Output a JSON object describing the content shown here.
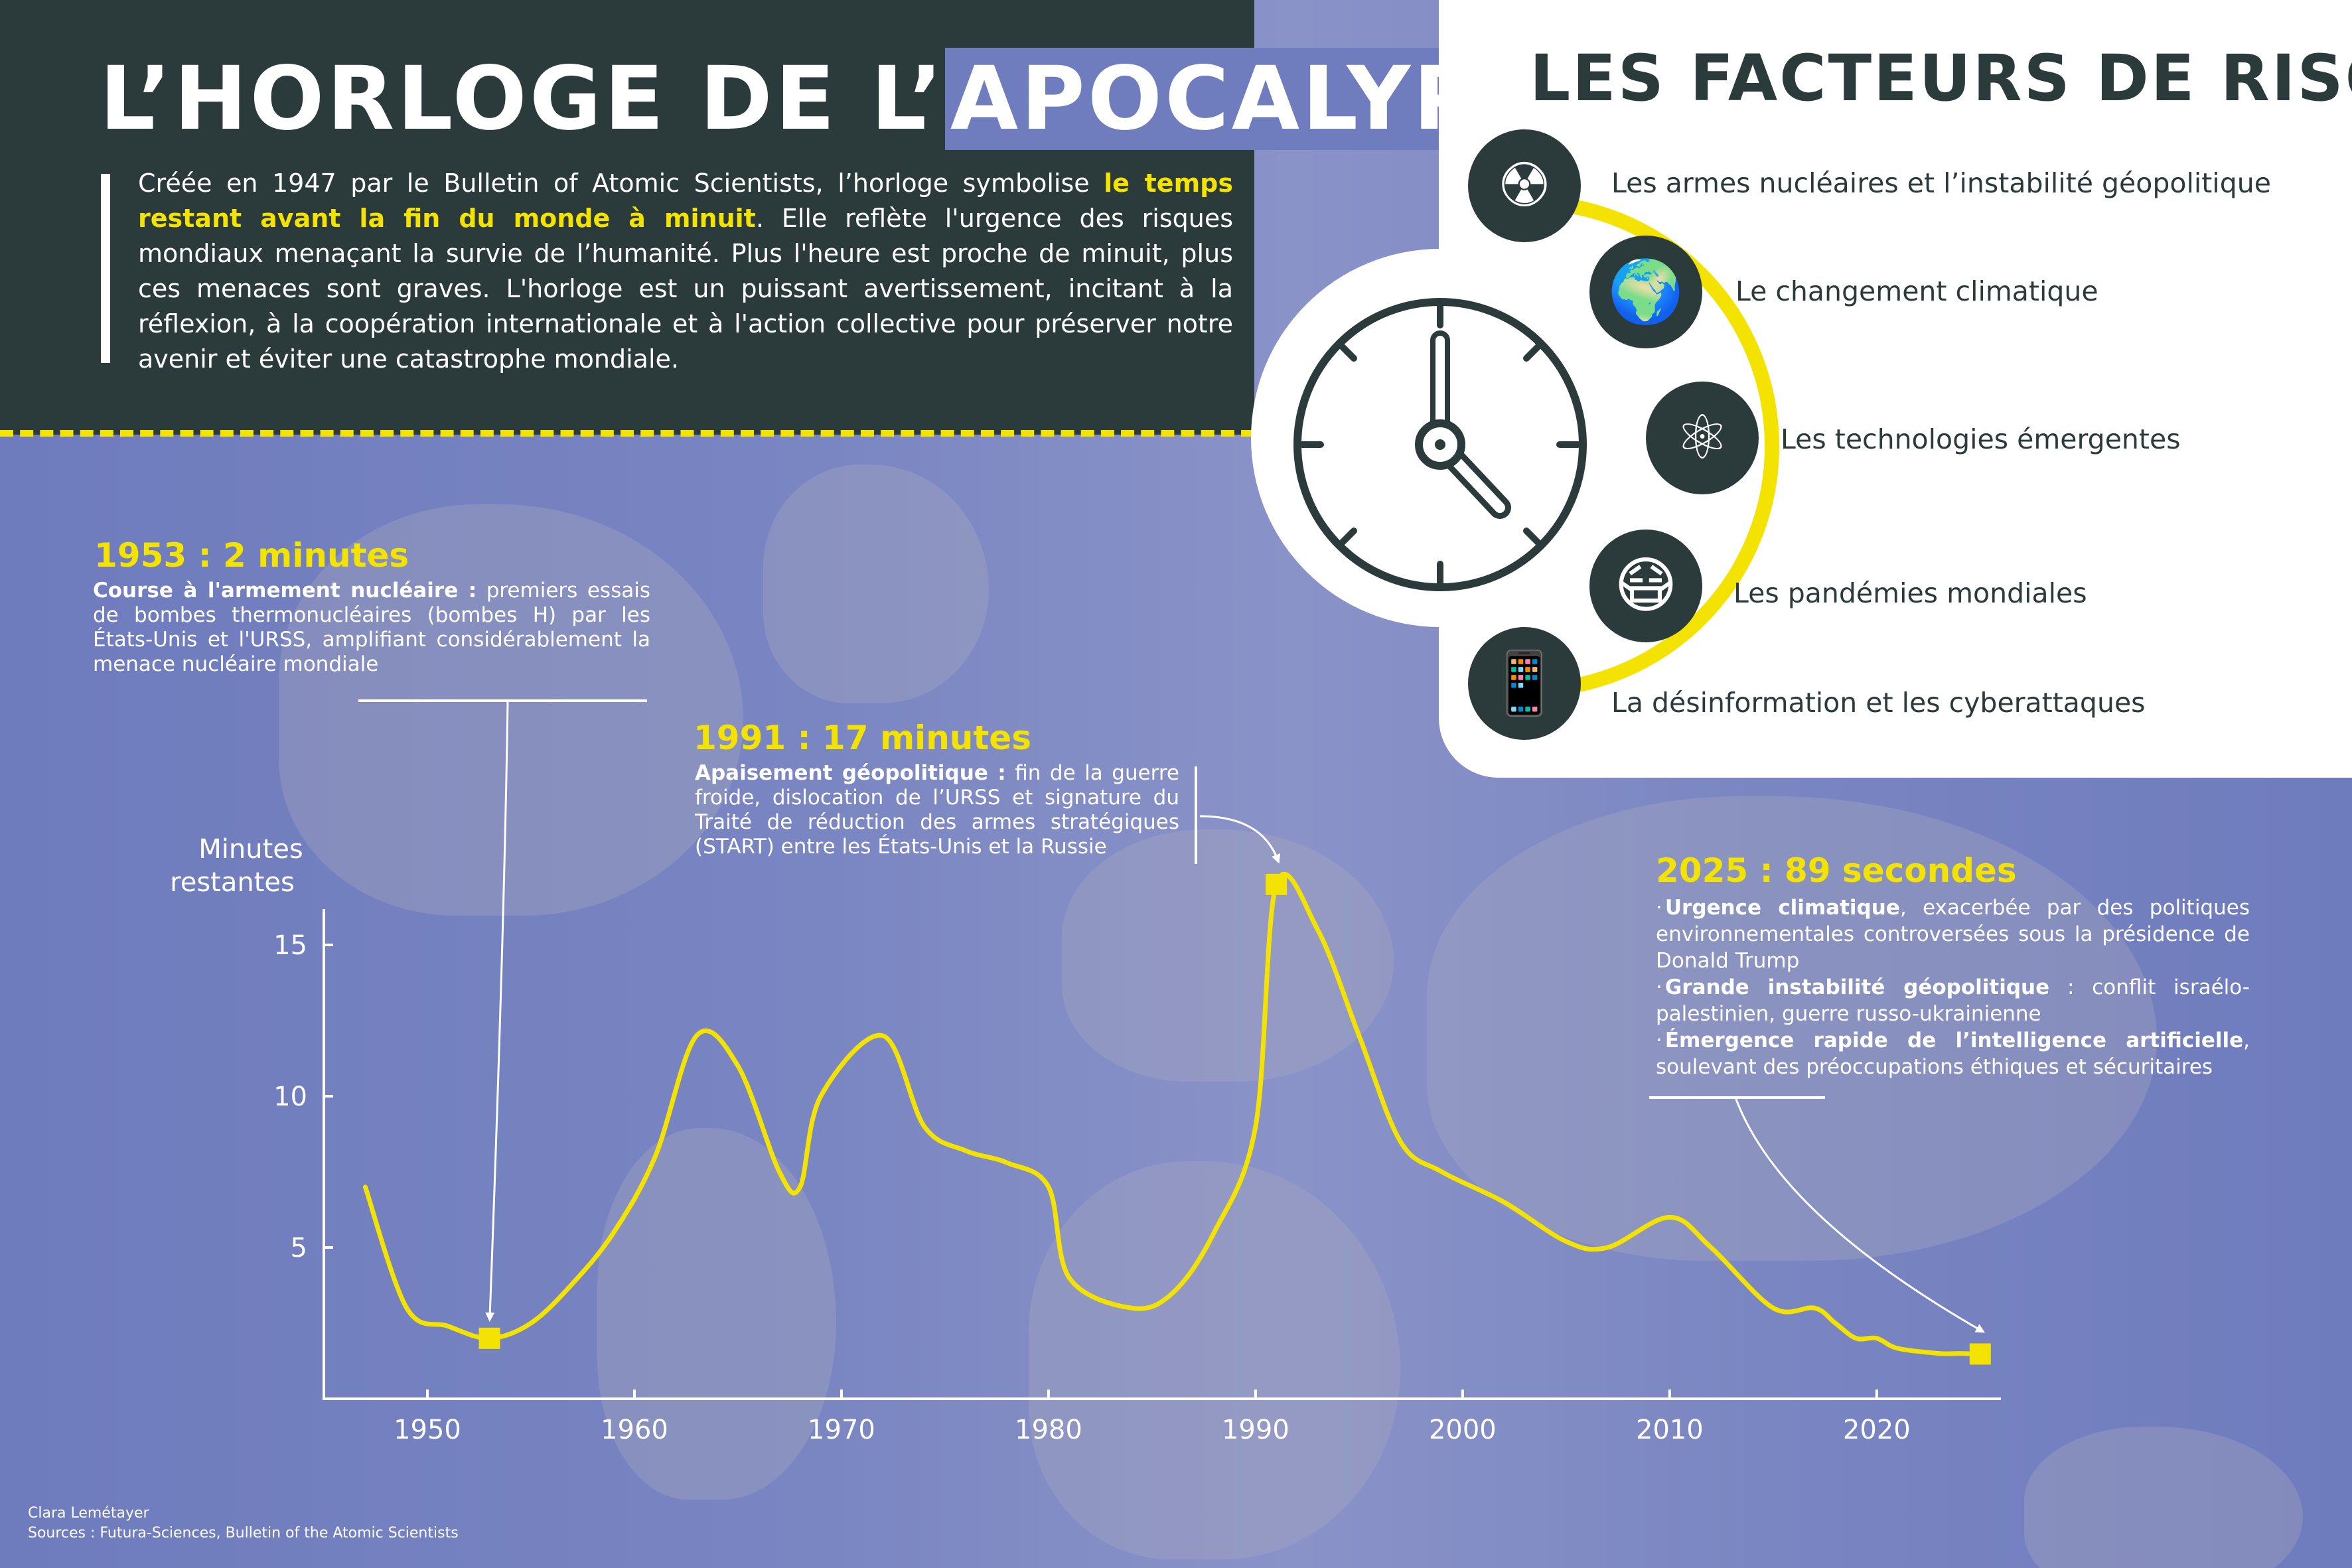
{
  "header": {
    "title_part1": "L’HORLOGE DE L’",
    "title_part2": "APOCALYPSE",
    "intro_part1": "Créée en 1947 par le Bulletin of Atomic Scientists, l’horloge symbolise ",
    "intro_highlight": "le temps restant avant la fin du monde à minuit",
    "intro_part2": ". Elle reflète l'urgence des risques mondiaux menaçant la survie de l’humanité. Plus l'heure est proche de minuit, plus ces menaces sont graves. L'horloge est un puissant avertissement, incitant à la réflexion, à la coopération internationale et à l'action collective pour préserver notre avenir et éviter une catastrophe mondiale."
  },
  "risk_factors": {
    "title": "LES FACTEURS DE RISQUE",
    "items": [
      {
        "label": "Les armes nucléaires et l’instabilité géopolitique",
        "icon": "radiation-icon",
        "glyph": "☢"
      },
      {
        "label": "Le changement climatique",
        "icon": "melting-globe-icon",
        "glyph": "🌍"
      },
      {
        "label": "Les technologies émergentes",
        "icon": "atom-bulb-icon",
        "glyph": "⚛"
      },
      {
        "label": "Les pandémies mondiales",
        "icon": "face-mask-icon",
        "glyph": "😷"
      },
      {
        "label": "La désinformation et les cyberattaques",
        "icon": "devices-network-icon",
        "glyph": "📱"
      }
    ]
  },
  "annotations": {
    "a1953": {
      "title": "1953 : 2 minutes",
      "bold": "Course à l'armement nucléaire :",
      "text": " premiers essais de bombes thermonucléaires (bombes H) par les États-Unis et l'URSS, amplifiant considérablement la menace nucléaire mondiale"
    },
    "a1991": {
      "title": "1991 : 17 minutes",
      "bold": "Apaisement géopolitique :",
      "text": " fin de la guerre froide, dislocation de l’URSS et signature du Traité de réduction des armes stratégiques (START) entre les États-Unis et la Russie"
    },
    "a2025": {
      "title": "2025 : 89 secondes",
      "items": [
        {
          "bold": "Urgence climatique",
          "text": ", exacerbée par des politiques environnementales controversées sous la présidence de Donald Trump"
        },
        {
          "bold": "Grande instabilité géopolitique",
          "text": " : conflit israélo-palestinien, guerre russo-ukrainienne"
        },
        {
          "bold": "Émergence rapide de l’intelligence artificielle",
          "text": ", soulevant des préoccupations éthiques et sécuritaires"
        }
      ]
    }
  },
  "chart_data": {
    "type": "line",
    "ylabel_line1": "Minutes",
    "ylabel_line2": "restantes",
    "xlabel": "",
    "xlim": [
      1945,
      2026
    ],
    "ylim": [
      0,
      17.5
    ],
    "xticks": [
      1950,
      1960,
      1970,
      1980,
      1990,
      2000,
      2010,
      2020
    ],
    "yticks": [
      5,
      10,
      15
    ],
    "grid": false,
    "line_color": "#f4e300",
    "series": [
      {
        "x": [
          1947,
          1949,
          1951,
          1953,
          1955,
          1957,
          1959,
          1961,
          1963,
          1965,
          1967,
          1968,
          1969,
          1972,
          1974,
          1976,
          1978,
          1980,
          1981,
          1984,
          1986,
          1988,
          1990,
          1991,
          1993,
          1995,
          1997,
          1999,
          2002,
          2005,
          2007,
          2010,
          2012,
          2015,
          2017,
          2018,
          2019,
          2020,
          2021,
          2023,
          2024,
          2025
        ],
        "y": [
          7,
          3,
          2.4,
          2,
          2.5,
          3.8,
          5.5,
          8,
          12,
          11,
          7.5,
          7,
          10,
          12,
          9,
          8.2,
          7.8,
          7,
          4,
          3,
          3.5,
          5.5,
          9,
          17,
          15.5,
          12,
          8.5,
          7.5,
          6.5,
          5.2,
          5,
          6,
          5,
          3,
          3,
          2.5,
          2,
          2,
          1.67,
          1.5,
          1.5,
          1.48
        ]
      }
    ],
    "highlights": [
      {
        "x": 1953,
        "y": 2
      },
      {
        "x": 1991,
        "y": 17
      },
      {
        "x": 2025,
        "y": 1.48
      }
    ]
  },
  "credits": {
    "author": "Clara Lemétayer",
    "sources": "Sources : Futura-Sciences, Bulletin of the Atomic Scientists"
  },
  "colors": {
    "dark": "#2b3a3a",
    "accent_yellow": "#f4e300",
    "map_blue": "#6f7cbe"
  }
}
